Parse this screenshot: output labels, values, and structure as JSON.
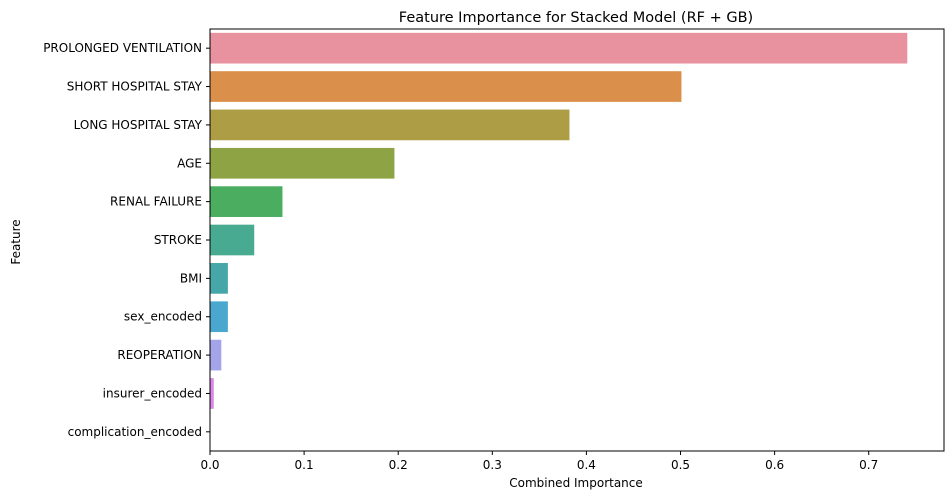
{
  "chart_data": {
    "type": "bar",
    "orientation": "horizontal",
    "title": "Feature Importance for Stacked Model (RF + GB)",
    "xlabel": "Combined Importance",
    "ylabel": "Feature",
    "categories": [
      "PROLONGED VENTILATION",
      "SHORT HOSPITAL STAY",
      "LONG HOSPITAL STAY",
      "AGE",
      "RENAL FAILURE",
      "STROKE",
      "BMI",
      "sex_encoded",
      "REOPERATION",
      "insurer_encoded",
      "complication_encoded"
    ],
    "values": [
      0.741,
      0.501,
      0.382,
      0.196,
      0.077,
      0.047,
      0.019,
      0.019,
      0.012,
      0.004,
      0.0
    ],
    "colors": [
      "#e8919f",
      "#da904b",
      "#ad9d45",
      "#8ea343",
      "#4aad5f",
      "#48aa90",
      "#47a6a7",
      "#4aa8cf",
      "#a3a4ea",
      "#da87e8",
      "#e68ec2"
    ],
    "xlim": [
      0,
      0.78
    ],
    "xticks": [
      0.0,
      0.1,
      0.2,
      0.3,
      0.4,
      0.5,
      0.6,
      0.7
    ],
    "xtick_labels": [
      "0.0",
      "0.1",
      "0.2",
      "0.3",
      "0.4",
      "0.5",
      "0.6",
      "0.7"
    ],
    "grid": false,
    "legend": "none"
  }
}
